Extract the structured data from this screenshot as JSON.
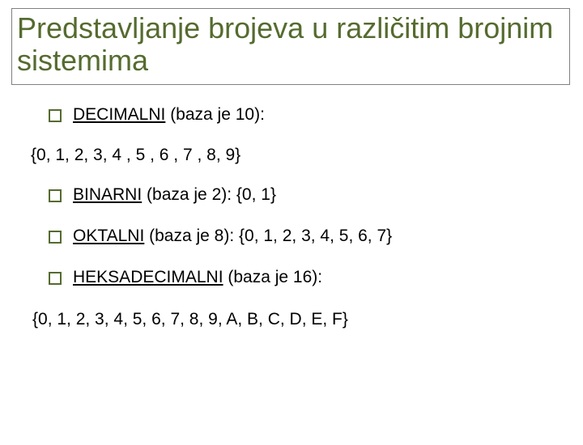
{
  "colors": {
    "title_color": "#556b2f",
    "bullet_border": "#556b2f",
    "text_color": "#000000",
    "background": "#ffffff",
    "border_gray": "#808080"
  },
  "typography": {
    "title_family": "Arial",
    "title_fontsize": 36,
    "body_family": "Verdana",
    "body_fontsize": 21
  },
  "title": "Predstavljanje brojeva u različitim brojnim sistemima",
  "items": [
    {
      "underlined": "DECIMALNI",
      "rest": " (baza je 10):"
    },
    {
      "plain": "{0, 1, 2, 3, 4 , 5 , 6 , 7 , 8, 9}"
    },
    {
      "underlined": "BINARNI",
      "rest": " (baza je 2):  {0, 1}"
    },
    {
      "underlined": "OKTALNI",
      "rest": " (baza je 8): {0, 1, 2, 3, 4, 5, 6, 7}"
    },
    {
      "underlined": "HEKSADECIMALNI",
      "rest": " (baza je 16):"
    }
  ],
  "footer_line": "{0, 1, 2, 3, 4, 5, 6, 7, 8, 9, A, B, C, D, E, F}"
}
